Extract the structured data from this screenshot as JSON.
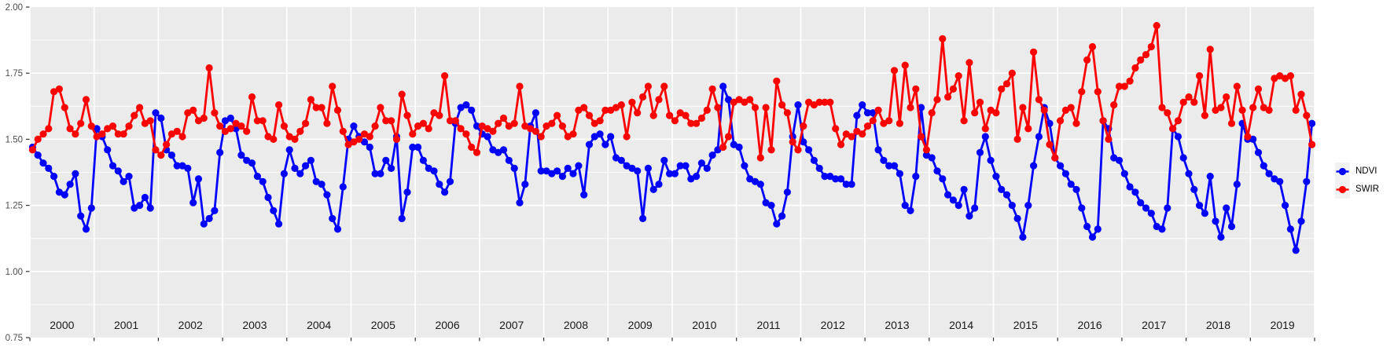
{
  "chart_data": {
    "type": "line",
    "title": "",
    "xlabel": "",
    "ylabel": "",
    "x_years": [
      2000,
      2001,
      2002,
      2003,
      2004,
      2005,
      2006,
      2007,
      2008,
      2009,
      2010,
      2011,
      2012,
      2013,
      2014,
      2015,
      2016,
      2017,
      2018,
      2019
    ],
    "points_per_year": 12,
    "ylim": [
      0.75,
      2.0
    ],
    "yticks": [
      "0.75",
      "1.00",
      "1.25",
      "1.50",
      "1.75",
      "2.00"
    ],
    "grid": "white major + minor gridlines on gray panel",
    "legend_position": "right",
    "panel_background": "#EBEBEB",
    "gridline_color": "#FFFFFF",
    "axis_text_color": "#4D4D4D",
    "year_label_color": "#1A1A1A",
    "tick_color": "#333333",
    "series": [
      {
        "name": "NDVI",
        "color": "#0000FF",
        "values_by_year": {
          "2000": [
            1.47,
            1.44,
            1.41,
            1.39,
            1.36,
            1.3,
            1.29,
            1.33,
            1.37,
            1.21,
            1.16,
            1.24
          ],
          "2001": [
            1.54,
            1.51,
            1.46,
            1.4,
            1.38,
            1.34,
            1.36,
            1.24,
            1.25,
            1.28,
            1.24,
            1.6
          ],
          "2002": [
            1.58,
            1.46,
            1.44,
            1.4,
            1.4,
            1.39,
            1.26,
            1.35,
            1.18,
            1.2,
            1.23,
            1.45
          ],
          "2003": [
            1.57,
            1.58,
            1.54,
            1.44,
            1.42,
            1.41,
            1.36,
            1.34,
            1.28,
            1.23,
            1.18,
            1.37
          ],
          "2004": [
            1.46,
            1.39,
            1.37,
            1.4,
            1.42,
            1.34,
            1.33,
            1.29,
            1.2,
            1.16,
            1.32,
            1.5
          ],
          "2005": [
            1.55,
            1.51,
            1.49,
            1.47,
            1.37,
            1.37,
            1.42,
            1.39,
            1.51,
            1.2,
            1.3,
            1.47
          ],
          "2006": [
            1.47,
            1.42,
            1.39,
            1.38,
            1.33,
            1.3,
            1.34,
            1.56,
            1.62,
            1.63,
            1.61,
            1.55
          ],
          "2007": [
            1.52,
            1.51,
            1.46,
            1.45,
            1.46,
            1.42,
            1.39,
            1.26,
            1.33,
            1.55,
            1.6,
            1.38
          ],
          "2008": [
            1.38,
            1.37,
            1.38,
            1.36,
            1.39,
            1.37,
            1.4,
            1.29,
            1.48,
            1.51,
            1.52,
            1.48
          ],
          "2009": [
            1.51,
            1.43,
            1.42,
            1.4,
            1.39,
            1.38,
            1.2,
            1.39,
            1.31,
            1.33,
            1.42,
            1.37
          ],
          "2010": [
            1.37,
            1.4,
            1.4,
            1.35,
            1.36,
            1.41,
            1.39,
            1.44,
            1.46,
            1.7,
            1.65,
            1.48
          ],
          "2011": [
            1.47,
            1.4,
            1.35,
            1.34,
            1.33,
            1.26,
            1.25,
            1.18,
            1.21,
            1.3,
            1.51,
            1.63
          ],
          "2012": [
            1.49,
            1.46,
            1.42,
            1.39,
            1.36,
            1.36,
            1.35,
            1.35,
            1.33,
            1.33,
            1.59,
            1.63
          ],
          "2013": [
            1.6,
            1.6,
            1.46,
            1.42,
            1.4,
            1.4,
            1.37,
            1.25,
            1.23,
            1.36,
            1.62,
            1.44
          ],
          "2014": [
            1.43,
            1.38,
            1.35,
            1.29,
            1.27,
            1.25,
            1.31,
            1.21,
            1.24,
            1.45,
            1.51,
            1.42
          ],
          "2015": [
            1.36,
            1.31,
            1.29,
            1.25,
            1.2,
            1.13,
            1.25,
            1.4,
            1.51,
            1.62,
            1.56,
            1.43
          ],
          "2016": [
            1.4,
            1.37,
            1.33,
            1.31,
            1.24,
            1.17,
            1.13,
            1.16,
            1.57,
            1.54,
            1.43,
            1.42
          ],
          "2017": [
            1.37,
            1.32,
            1.3,
            1.26,
            1.24,
            1.22,
            1.17,
            1.16,
            1.24,
            1.54,
            1.51,
            1.43
          ],
          "2018": [
            1.37,
            1.31,
            1.25,
            1.22,
            1.36,
            1.19,
            1.13,
            1.24,
            1.17,
            1.33,
            1.56,
            1.5
          ],
          "2019": [
            1.5,
            1.45,
            1.4,
            1.37,
            1.35,
            1.34,
            1.25,
            1.16,
            1.08,
            1.19,
            1.34,
            1.56
          ]
        }
      },
      {
        "name": "SWIR",
        "color": "#FF0000",
        "values_by_year": {
          "2000": [
            1.46,
            1.5,
            1.52,
            1.54,
            1.68,
            1.69,
            1.62,
            1.54,
            1.52,
            1.56,
            1.65,
            1.55
          ],
          "2001": [
            1.51,
            1.52,
            1.54,
            1.55,
            1.52,
            1.52,
            1.55,
            1.59,
            1.62,
            1.56,
            1.57,
            1.46
          ],
          "2002": [
            1.44,
            1.48,
            1.52,
            1.53,
            1.51,
            1.6,
            1.61,
            1.57,
            1.58,
            1.77,
            1.6,
            1.55
          ],
          "2003": [
            1.53,
            1.54,
            1.56,
            1.55,
            1.53,
            1.66,
            1.57,
            1.57,
            1.51,
            1.5,
            1.63,
            1.55
          ],
          "2004": [
            1.51,
            1.5,
            1.53,
            1.56,
            1.65,
            1.62,
            1.62,
            1.56,
            1.7,
            1.61,
            1.53,
            1.48
          ],
          "2005": [
            1.49,
            1.5,
            1.52,
            1.51,
            1.55,
            1.62,
            1.57,
            1.57,
            1.5,
            1.67,
            1.59,
            1.52
          ],
          "2006": [
            1.55,
            1.56,
            1.54,
            1.6,
            1.59,
            1.74,
            1.57,
            1.57,
            1.54,
            1.52,
            1.47,
            1.45
          ],
          "2007": [
            1.55,
            1.54,
            1.53,
            1.56,
            1.58,
            1.55,
            1.56,
            1.7,
            1.55,
            1.54,
            1.53,
            1.51
          ],
          "2008": [
            1.55,
            1.56,
            1.59,
            1.55,
            1.51,
            1.52,
            1.61,
            1.62,
            1.59,
            1.56,
            1.57,
            1.61
          ],
          "2009": [
            1.61,
            1.62,
            1.63,
            1.51,
            1.64,
            1.6,
            1.66,
            1.7,
            1.59,
            1.65,
            1.7,
            1.59
          ],
          "2010": [
            1.57,
            1.6,
            1.59,
            1.56,
            1.56,
            1.58,
            1.61,
            1.69,
            1.62,
            1.47,
            1.51,
            1.64
          ],
          "2011": [
            1.65,
            1.64,
            1.65,
            1.62,
            1.43,
            1.62,
            1.46,
            1.72,
            1.63,
            1.6,
            1.49,
            1.46
          ],
          "2012": [
            1.55,
            1.64,
            1.63,
            1.64,
            1.64,
            1.64,
            1.54,
            1.48,
            1.52,
            1.51,
            1.53,
            1.52
          ],
          "2013": [
            1.55,
            1.57,
            1.61,
            1.56,
            1.57,
            1.76,
            1.56,
            1.78,
            1.62,
            1.69,
            1.51,
            1.46
          ],
          "2014": [
            1.6,
            1.65,
            1.88,
            1.66,
            1.69,
            1.74,
            1.57,
            1.79,
            1.6,
            1.64,
            1.54,
            1.61
          ],
          "2015": [
            1.6,
            1.69,
            1.71,
            1.75,
            1.5,
            1.62,
            1.54,
            1.83,
            1.65,
            1.61,
            1.48,
            1.43
          ],
          "2016": [
            1.57,
            1.61,
            1.62,
            1.56,
            1.68,
            1.8,
            1.85,
            1.68,
            1.57,
            1.5,
            1.63,
            1.7
          ],
          "2017": [
            1.7,
            1.72,
            1.77,
            1.8,
            1.82,
            1.85,
            1.93,
            1.62,
            1.6,
            1.54,
            1.57,
            1.64
          ],
          "2018": [
            1.66,
            1.64,
            1.74,
            1.59,
            1.84,
            1.61,
            1.62,
            1.66,
            1.56,
            1.7,
            1.61,
            1.51
          ],
          "2019": [
            1.62,
            1.69,
            1.62,
            1.61,
            1.73,
            1.74,
            1.73,
            1.74,
            1.61,
            1.67,
            1.59,
            1.48
          ]
        }
      }
    ]
  }
}
